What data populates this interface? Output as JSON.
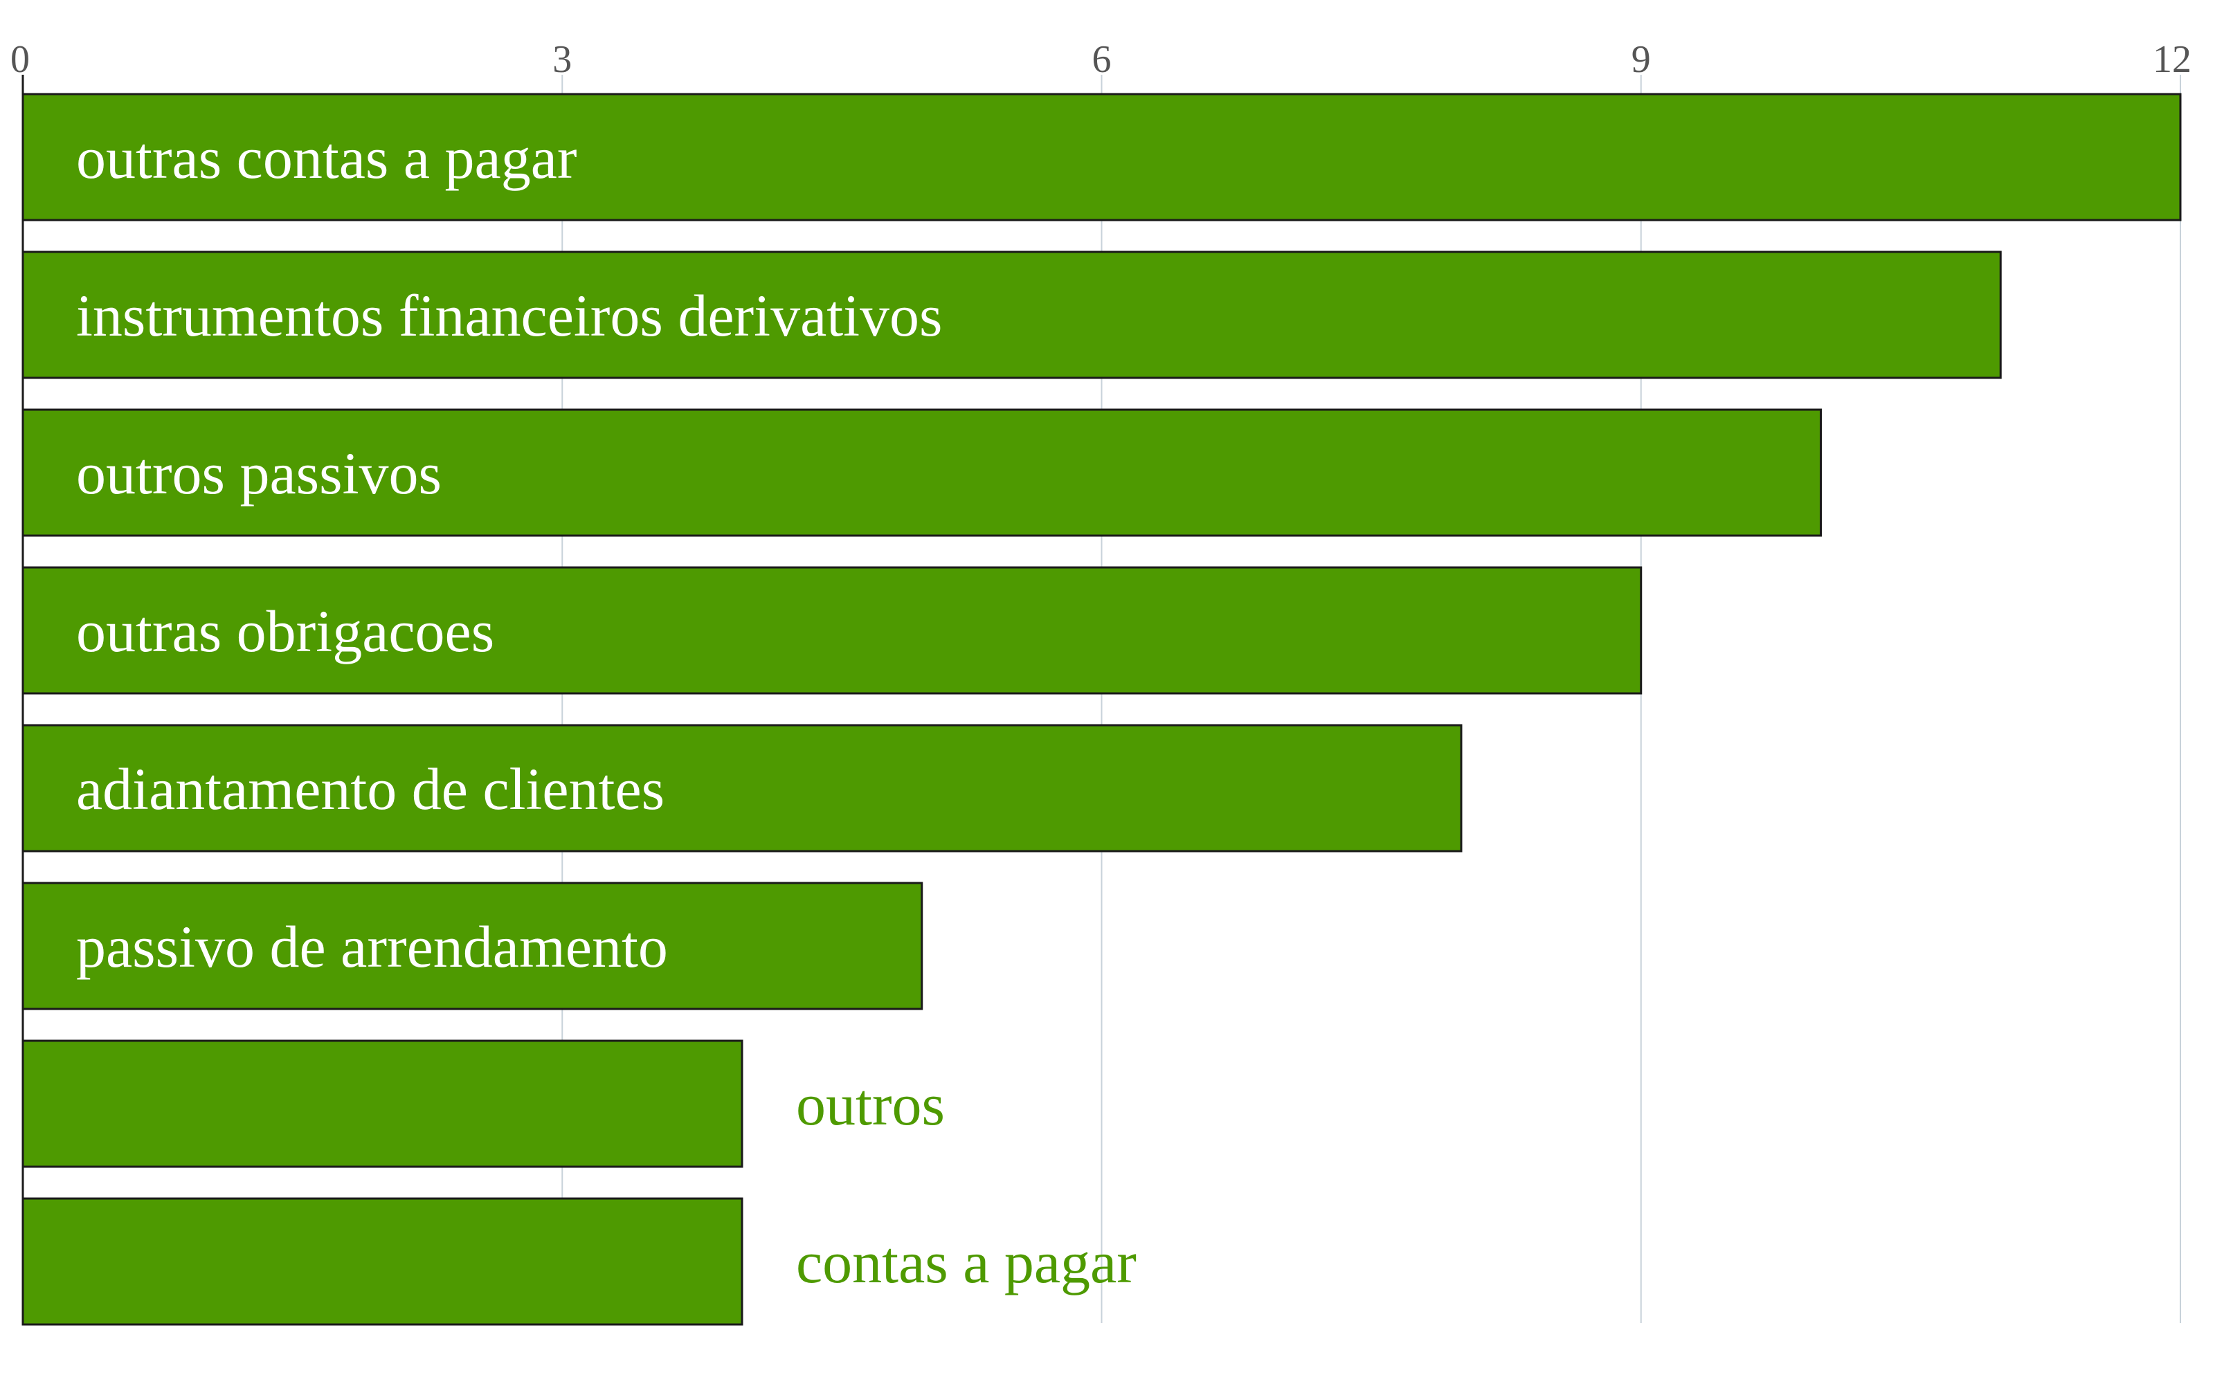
{
  "chart_data": {
    "type": "bar",
    "orientation": "horizontal",
    "title": "",
    "xlabel": "",
    "ylabel": "",
    "xlim": [
      0,
      12
    ],
    "ticks": [
      0,
      3,
      6,
      9,
      12
    ],
    "tick_labels": [
      "0",
      "3",
      "6",
      "9",
      "12"
    ],
    "grid": true,
    "categories": [
      "outras contas a pagar",
      "instrumentos financeiros derivativos",
      "outros passivos",
      "outras obrigacoes",
      "adiantamento de clientes",
      "passivo de arrendamento",
      "outros",
      "contas a pagar"
    ],
    "values": [
      12,
      11,
      10,
      9,
      8,
      5,
      4,
      4
    ],
    "colors": {
      "bar": "#4e9a01",
      "bar_stroke": "#1a1a1a",
      "grid": "#c8d2da",
      "tick_text": "#555555",
      "label_inside": "#ffffff",
      "label_outside": "#4e9a01"
    }
  }
}
